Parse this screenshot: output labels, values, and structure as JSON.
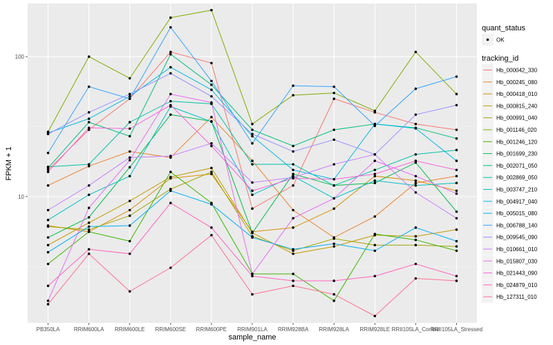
{
  "chart_data": {
    "type": "line",
    "title": "",
    "xlabel": "sample_name",
    "ylabel": "FPKM + 1",
    "yscale": "log10",
    "ylim": [
      1.25,
      240
    ],
    "yticks": [
      {
        "value": 10,
        "label": "10"
      },
      {
        "value": 100,
        "label": "100"
      }
    ],
    "grid": true,
    "categories": [
      "PB350LA",
      "RRIM600LA",
      "RRIM600LE",
      "RRIM600SE",
      "RRIM600PE",
      "RRIM901LA",
      "RRIM928BA",
      "RRIM928LA",
      "RRIM928LE",
      "RRII105LA_Control",
      "RRII105LA_Stressed"
    ],
    "category_labels": [
      "PB350LA",
      "RRIM600LA",
      "RRIM600LE",
      "RRIM600SE",
      "RRIM600PE",
      "RRIM901LA",
      "RRIM928BA",
      "RRIM928LA",
      "RRIM928LE",
      "RRII105LA_Control",
      "RRII105LA_Stressed"
    ],
    "legends": [
      {
        "title": "quant_status",
        "entries": [
          {
            "label": "OK",
            "shape": "point"
          }
        ]
      },
      {
        "title": "tracking_id",
        "entries": [
          {
            "label": "Hb_000042_330",
            "color": "#F8766D"
          },
          {
            "label": "Hb_000245_080",
            "color": "#EA8331"
          },
          {
            "label": "Hb_000418_010",
            "color": "#D89000"
          },
          {
            "label": "Hb_000815_240",
            "color": "#C09B00"
          },
          {
            "label": "Hb_000991_040",
            "color": "#A3A500"
          },
          {
            "label": "Hb_001146_020",
            "color": "#7CAE00"
          },
          {
            "label": "Hb_001246_120",
            "color": "#39B600"
          },
          {
            "label": "Hb_001699_230",
            "color": "#00BB4E"
          },
          {
            "label": "Hb_002071_050",
            "color": "#00BF7D"
          },
          {
            "label": "Hb_002869_050",
            "color": "#00C1A3"
          },
          {
            "label": "Hb_003747_210",
            "color": "#00BFC4"
          },
          {
            "label": "Hb_004917_040",
            "color": "#00BAE0"
          },
          {
            "label": "Hb_005015_080",
            "color": "#00B0F6"
          },
          {
            "label": "Hb_006788_140",
            "color": "#35A2FF"
          },
          {
            "label": "Hb_009545_090",
            "color": "#9590FF"
          },
          {
            "label": "Hb_010661_010",
            "color": "#C77CFF"
          },
          {
            "label": "Hb_015807_030",
            "color": "#E76BF3"
          },
          {
            "label": "Hb_021443_090",
            "color": "#FA62DB"
          },
          {
            "label": "Hb_024879_010",
            "color": "#FF62BC"
          },
          {
            "label": "Hb_127311_010",
            "color": "#FF6C91"
          }
        ]
      }
    ],
    "series": [
      {
        "name": "Hb_000042_330",
        "values": [
          15.5,
          30,
          50,
          108,
          90,
          8.2,
          12,
          50,
          40,
          33,
          30
        ]
      },
      {
        "name": "Hb_000245_080",
        "values": [
          12,
          16.5,
          21,
          19,
          37,
          18,
          8,
          5.1,
          7.2,
          12.5,
          14
        ]
      },
      {
        "name": "Hb_000418_010",
        "values": [
          6.2,
          5.6,
          8,
          13.5,
          14.5,
          5.6,
          6,
          8.2,
          14,
          13,
          11
        ]
      },
      {
        "name": "Hb_000815_240",
        "values": [
          4.5,
          6.5,
          9.3,
          13.8,
          16,
          5.5,
          3.9,
          4.4,
          5.3,
          5.2,
          5.8
        ]
      },
      {
        "name": "Hb_000991_040",
        "values": [
          6.1,
          5.8,
          7.3,
          11.3,
          15,
          5.2,
          4.1,
          5,
          4.5,
          4.5,
          4.4
        ]
      },
      {
        "name": "Hb_001146_020",
        "values": [
          29,
          100,
          70,
          190,
          215,
          33,
          53,
          55,
          41,
          108,
          54
        ]
      },
      {
        "name": "Hb_001246_120",
        "values": [
          3.3,
          5.6,
          4.8,
          15,
          9,
          2.8,
          2.8,
          1.8,
          5.4,
          4.9,
          4.1
        ]
      },
      {
        "name": "Hb_001699_230",
        "values": [
          5.1,
          7.1,
          16.2,
          38.5,
          34.5,
          5.5,
          14.5,
          12,
          12.5,
          17.5,
          7.8
        ]
      },
      {
        "name": "Hb_002071_050",
        "values": [
          16,
          34,
          27,
          104,
          63,
          30,
          23,
          30,
          33,
          31,
          26
        ]
      },
      {
        "name": "Hb_002869_050",
        "values": [
          16.3,
          17,
          34,
          48,
          46,
          17,
          17,
          12,
          15.5,
          20,
          21.5
        ]
      },
      {
        "name": "Hb_003747_210",
        "values": [
          6.8,
          10.3,
          14,
          44,
          34.3,
          10.3,
          14,
          9.7,
          13,
          12,
          12.5
        ]
      },
      {
        "name": "Hb_004917_040",
        "values": [
          28.5,
          36,
          52,
          84,
          58,
          27,
          15.5,
          13.3,
          33,
          30.7,
          18
        ]
      },
      {
        "name": "Hb_005015_080",
        "values": [
          4,
          6.1,
          6.2,
          11,
          8.8,
          5.1,
          4.2,
          4.6,
          4.1,
          6,
          4.8
        ]
      },
      {
        "name": "Hb_006788_140",
        "values": [
          20.5,
          61,
          50,
          162,
          67,
          24,
          62,
          61,
          32,
          59,
          72
        ]
      },
      {
        "name": "Hb_009545_090",
        "values": [
          28,
          40,
          54,
          76,
          52,
          28,
          21,
          25.5,
          20,
          38.5,
          45
        ]
      },
      {
        "name": "Hb_010661_010",
        "values": [
          8,
          12,
          19,
          19.5,
          24,
          12.6,
          13.7,
          17,
          20,
          10.7,
          7
        ]
      },
      {
        "name": "Hb_015807_030",
        "values": [
          1.8,
          8.3,
          18.2,
          54,
          47,
          2.8,
          7,
          9.7,
          18,
          14,
          10.5
        ]
      },
      {
        "name": "Hb_021443_090",
        "values": [
          15,
          31,
          30.6,
          45,
          23,
          11,
          13.5,
          13.3,
          14.5,
          18,
          15.5
        ]
      },
      {
        "name": "Hb_024879_010",
        "values": [
          2.3,
          4.2,
          3.9,
          9,
          6,
          2.7,
          2.5,
          2.5,
          2.7,
          3.3,
          2.7
        ]
      },
      {
        "name": "Hb_127311_010",
        "values": [
          1.7,
          3.9,
          2.1,
          3.1,
          5.3,
          2,
          2.3,
          2,
          1.4,
          2.6,
          2.5
        ]
      }
    ]
  }
}
